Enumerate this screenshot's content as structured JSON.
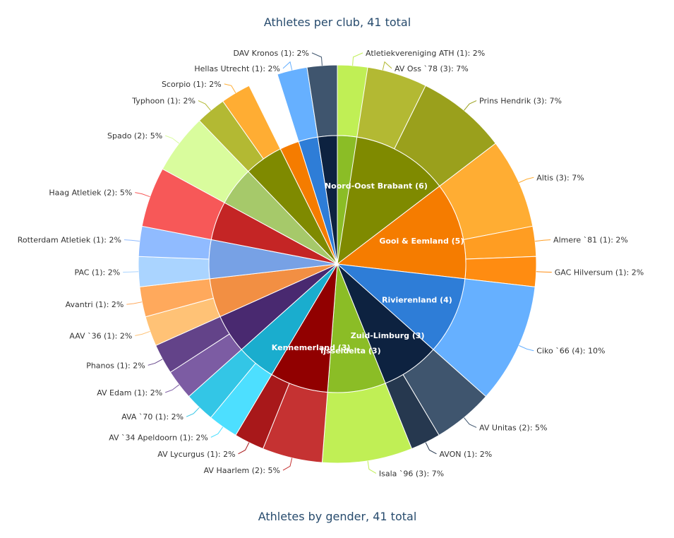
{
  "chart_data": [
    {
      "type": "pie",
      "variant": "sunburst-donut",
      "title": "Athletes per club, 41 total",
      "total": 41,
      "regions": [
        {
          "name": "Noord-Oost Brabant",
          "label": "Noord-Oost Brabant (6)",
          "value": 6,
          "color": "#7f8a00",
          "clubs": [
            {
              "label": "AV Oss `78 (3): 7%",
              "value": 3,
              "color": "#b3b933"
            },
            {
              "label": "Prins Hendrik (3): 7%",
              "value": 3,
              "color": "#9aa01c"
            }
          ]
        },
        {
          "name": "Gooi & Eemland",
          "label": "Gooi & Eemland (5)",
          "value": 5,
          "color": "#f57c00",
          "clubs": [
            {
              "label": "Altis (3): 7%",
              "value": 3,
              "color": "#ffad33"
            },
            {
              "label": "Almere `81 (1): 2%",
              "value": 1,
              "color": "#ff9d22"
            },
            {
              "label": "GAC Hilversum (1): 2%",
              "value": 1,
              "color": "#ff8c11"
            }
          ]
        },
        {
          "name": "Rivierenland",
          "label": "Rivierenland (4)",
          "value": 4,
          "color": "#2e7dd7",
          "clubs": [
            {
              "label": "Ciko `66 (4): 10%",
              "value": 4,
              "color": "#66b0ff"
            }
          ]
        },
        {
          "name": "Zuid-Limburg",
          "label": "Zuid-Limburg (3)",
          "value": 3,
          "color": "#0d2240",
          "clubs": [
            {
              "label": "AV Unitas (2): 5%",
              "value": 2,
              "color": "#3f556e"
            },
            {
              "label": "AVON (1): 2%",
              "value": 1,
              "color": "#26384f"
            }
          ]
        },
        {
          "name": "Ijsseldelta",
          "label": "Ijsseldelta (3)",
          "value": 3,
          "color": "#8bbd26",
          "clubs": [
            {
              "label": "Isala `96 (3): 7%",
              "value": 3,
              "color": "#c0ef55"
            }
          ]
        },
        {
          "name": "Kennemerland",
          "label": "Kennemerland (3)",
          "value": 3,
          "color": "#910000",
          "clubs": [
            {
              "label": "AV Haarlem (2): 5%",
              "value": 2,
              "color": "#c53232"
            },
            {
              "label": "AV Lycurgus (1): 2%",
              "value": 1,
              "color": "#a8181a"
            }
          ]
        },
        {
          "name": "",
          "label": "",
          "value": 2,
          "color": "#1aadce",
          "clubs": [
            {
              "label": "AV `34 Apeldoorn (1): 2%",
              "value": 1,
              "color": "#4ddfff"
            },
            {
              "label": "AVA `70 (1): 2%",
              "value": 1,
              "color": "#33c6e6"
            }
          ]
        },
        {
          "name": "",
          "label": "",
          "value": 2,
          "color": "#492970",
          "clubs": [
            {
              "label": "AV Edam (1): 2%",
              "value": 1,
              "color": "#7c5ca3"
            },
            {
              "label": "Phanos (1): 2%",
              "value": 1,
              "color": "#634389"
            }
          ]
        },
        {
          "name": "",
          "label": "",
          "value": 2,
          "color": "#f28f43",
          "clubs": [
            {
              "label": "AAV `36 (1): 2%",
              "value": 1,
              "color": "#ffc276"
            },
            {
              "label": "Avantri (1): 2%",
              "value": 1,
              "color": "#ffa95c"
            }
          ]
        },
        {
          "name": "",
          "label": "",
          "value": 2,
          "color": "#77a1e5",
          "clubs": [
            {
              "label": "PAC (1): 2%",
              "value": 1,
              "color": "#aad4ff"
            },
            {
              "label": "Rotterdam Atletiek (1): 2%",
              "value": 1,
              "color": "#90bbff"
            }
          ]
        },
        {
          "name": "",
          "label": "",
          "value": 2,
          "color": "#c42525",
          "clubs": [
            {
              "label": "Haag Atletiek (2): 5%",
              "value": 2,
              "color": "#f75858"
            }
          ]
        },
        {
          "name": "",
          "label": "",
          "value": 2,
          "color": "#a6c96a",
          "clubs": [
            {
              "label": "Spado (2): 5%",
              "value": 2,
              "color": "#d9fc9d"
            }
          ]
        },
        {
          "name": "",
          "label": "",
          "value": 2,
          "color": "#7f8a00",
          "clubs": [
            {
              "label": "Typhoon (1): 2%",
              "value": 1,
              "color": "#b3b933"
            },
            {
              "label": "Scorpio (1): 2%",
              "value": 1,
              "color": "#ffad33"
            }
          ]
        },
        {
          "name": "",
          "label": "",
          "value": 1,
          "color": "#f57c00",
          "clubs": []
        },
        {
          "name": "",
          "label": "",
          "value": 1,
          "color": "#2e7dd7",
          "clubs": [
            {
              "label": "Hellas Utrecht (1): 2%",
              "value": 1,
              "color": "#66b0ff"
            }
          ]
        },
        {
          "name": "",
          "label": "",
          "value": 1,
          "color": "#0d2240",
          "clubs": [
            {
              "label": "DAV Kronos (1): 2%",
              "value": 1,
              "color": "#3f556e"
            }
          ]
        },
        {
          "name": "",
          "label": "",
          "value": 1,
          "color": "#8bbd26",
          "clubs": [
            {
              "label": "Atletiekvereniging ATH (1): 2%",
              "value": 1,
              "color": "#c0ef55"
            }
          ]
        }
      ]
    },
    {
      "type": "pie",
      "title": "Athletes by gender, 41 total"
    }
  ]
}
